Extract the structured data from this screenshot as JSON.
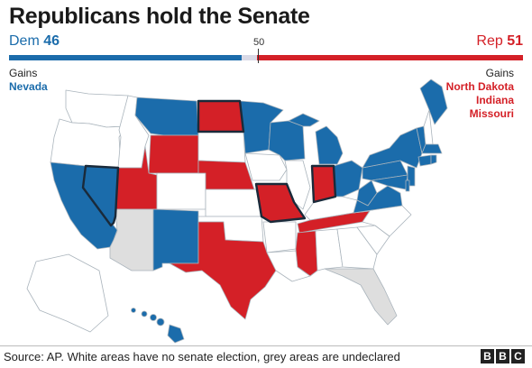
{
  "title": "Republicans hold the Senate",
  "tally": {
    "dem_label": "Dem",
    "dem_seats": "46",
    "rep_label": "Rep",
    "rep_seats": "51",
    "majority_mark": "50"
  },
  "gains": {
    "label": "Gains",
    "dem": [
      "Nevada"
    ],
    "rep": [
      "North Dakota",
      "Indiana",
      "Missouri"
    ]
  },
  "colors": {
    "dem": "#1b6cab",
    "rep": "#d42027",
    "no_election": "#ffffff",
    "undeclared": "#dedede",
    "borders": "#aab4bc",
    "gain_outline": "#1a2a3a"
  },
  "source": "Source: AP. White areas have no senate election, grey areas are undeclared",
  "logo": [
    "B",
    "B",
    "C"
  ]
}
